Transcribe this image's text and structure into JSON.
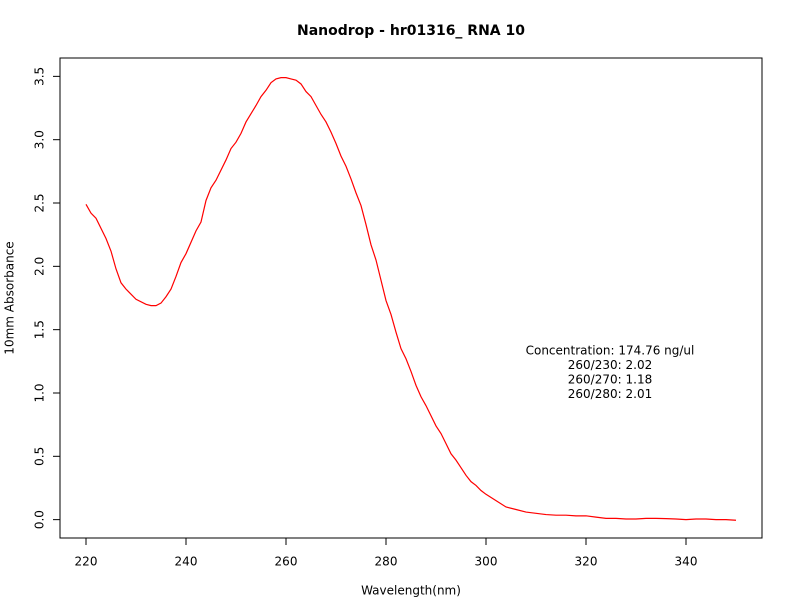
{
  "chart_data": {
    "type": "line",
    "title": "Nanodrop - hr01316_ RNA 10",
    "x_label": "Wavelength(nm)",
    "y_label": "10mm Absorbance",
    "annotations": [
      "Concentration: 174.76 ng/ul",
      "260/230: 2.02",
      "260/270: 1.18",
      "260/280: 2.01"
    ],
    "x": [
      220,
      221,
      222,
      224,
      225,
      226,
      227,
      228,
      230,
      232,
      233,
      234,
      235,
      236,
      237,
      238,
      239,
      240,
      242,
      243,
      244,
      245,
      246,
      248,
      249,
      250,
      251,
      252,
      254,
      255,
      256,
      257,
      258,
      259,
      260,
      261,
      262,
      263,
      264,
      265,
      266,
      267,
      268,
      269,
      270,
      271,
      272,
      273,
      274,
      275,
      276,
      277,
      278,
      279,
      280,
      281,
      282,
      283,
      284,
      285,
      286,
      287,
      288,
      289,
      290,
      291,
      292,
      293,
      294,
      295,
      296,
      297,
      298,
      299,
      300,
      302,
      304,
      306,
      308,
      310,
      312,
      314,
      316,
      318,
      320,
      322,
      324,
      326,
      328,
      330,
      332,
      334,
      336,
      338,
      340,
      342,
      344,
      346,
      348,
      350
    ],
    "series": [
      {
        "name": "Absorbance",
        "color": "#ff0000",
        "values": [
          2.49,
          2.42,
          2.38,
          2.22,
          2.12,
          1.98,
          1.87,
          1.82,
          1.74,
          1.7,
          1.69,
          1.69,
          1.71,
          1.76,
          1.82,
          1.92,
          2.03,
          2.1,
          2.28,
          2.35,
          2.52,
          2.62,
          2.68,
          2.84,
          2.93,
          2.98,
          3.05,
          3.14,
          3.27,
          3.34,
          3.39,
          3.45,
          3.48,
          3.49,
          3.49,
          3.48,
          3.47,
          3.44,
          3.38,
          3.34,
          3.27,
          3.2,
          3.14,
          3.06,
          2.97,
          2.87,
          2.79,
          2.69,
          2.58,
          2.48,
          2.33,
          2.17,
          2.05,
          1.89,
          1.73,
          1.62,
          1.48,
          1.35,
          1.27,
          1.17,
          1.06,
          0.97,
          0.9,
          0.82,
          0.74,
          0.68,
          0.6,
          0.52,
          0.47,
          0.41,
          0.35,
          0.3,
          0.27,
          0.23,
          0.2,
          0.15,
          0.1,
          0.08,
          0.06,
          0.05,
          0.04,
          0.035,
          0.035,
          0.03,
          0.03,
          0.02,
          0.01,
          0.01,
          0.005,
          0.005,
          0.01,
          0.01,
          0.008,
          0.005,
          0.0,
          0.005,
          0.005,
          0.0,
          0.0,
          -0.005
        ]
      }
    ],
    "xlim": [
      214.8,
      355.2
    ],
    "xticks": [
      220,
      240,
      260,
      280,
      300,
      320,
      340
    ],
    "ylim": [
      -0.145,
      3.645
    ],
    "yticks": [
      {
        "value": 0,
        "label": "0.0"
      },
      {
        "value": 0.5,
        "label": "0.5"
      },
      {
        "value": 1,
        "label": "1.0"
      },
      {
        "value": 1.5,
        "label": "1.5"
      },
      {
        "value": 2,
        "label": "2.0"
      },
      {
        "value": 2.5,
        "label": "2.5"
      },
      {
        "value": 3,
        "label": "3.0"
      },
      {
        "value": 3.5,
        "label": "3.5"
      }
    ]
  }
}
